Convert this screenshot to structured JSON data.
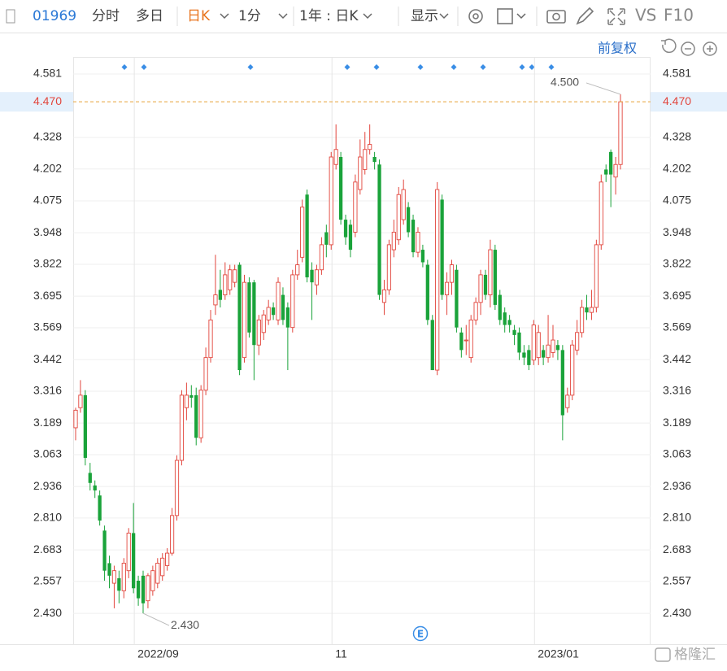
{
  "toolbar": {
    "code": "01969",
    "tabs": [
      "分时",
      "多日",
      "日K"
    ],
    "interval": "1分",
    "range": "1年 : 日K",
    "display": "显示",
    "compare": "VS",
    "f10": "F10",
    "adjustment": "前复权"
  },
  "watermark": "格隆汇",
  "event_badge": "E",
  "chart_data": {
    "type": "candlestick",
    "up_color": "#e2453c",
    "down_color": "#1aa33a",
    "grid": true,
    "ylim": [
      2.307,
      4.649
    ],
    "yticks": [
      {
        "value": 2.43,
        "label": "2.430"
      },
      2.557,
      2.683,
      {
        "value": 2.81,
        "label": "2.810"
      },
      2.936,
      3.063,
      3.189,
      3.316,
      3.442,
      3.569,
      3.695,
      3.822,
      3.948,
      4.075,
      4.202,
      4.328,
      4.581
    ],
    "xticks": [
      {
        "value": 12,
        "label": "2022/09"
      },
      {
        "value": 53,
        "label": "11"
      },
      {
        "value": 95,
        "label": "2023/01"
      }
    ],
    "last_price": {
      "value": 4.47,
      "label": "4.470"
    },
    "extremes": [
      {
        "value": 4.5,
        "label": "4.500"
      },
      {
        "value": 2.43,
        "label": "2.430"
      }
    ],
    "open": [
      3.17,
      3.25,
      3.3,
      2.99,
      2.94,
      2.9,
      2.76,
      2.63,
      2.55,
      2.57,
      2.52,
      2.6,
      2.75,
      2.56,
      2.58,
      2.48,
      2.52,
      2.55,
      2.58,
      2.62,
      2.67,
      2.82,
      3.04,
      3.25,
      3.3,
      3.3,
      3.13,
      3.32,
      3.45,
      3.66,
      3.72,
      3.7,
      3.72,
      3.75,
      3.82,
      3.45,
      3.75,
      3.75,
      3.5,
      3.55,
      3.6,
      3.65,
      3.6,
      3.7,
      3.65,
      3.57,
      3.78,
      3.85,
      4.1,
      3.8,
      3.74,
      3.8,
      3.95,
      3.9,
      4.22,
      4.25,
      4.0,
      3.98,
      3.95,
      4.12,
      4.2,
      4.28,
      4.25,
      4.22,
      3.67,
      3.72,
      3.88,
      3.92,
      4.0,
      4.05,
      4.0,
      3.87,
      3.88,
      3.82,
      3.6,
      3.4,
      4.08,
      3.7,
      3.75,
      3.8,
      3.55,
      3.52,
      3.45,
      3.6,
      3.67,
      3.78,
      3.7,
      3.88,
      3.7,
      3.63,
      3.6,
      3.56,
      3.55,
      3.47,
      3.48,
      3.44,
      3.45,
      3.48,
      3.45,
      3.47,
      3.5,
      3.48,
      3.25,
      3.3,
      3.48,
      3.55,
      3.65,
      3.63,
      3.65,
      3.9,
      4.2,
      4.27,
      4.17,
      4.22
    ],
    "high": [
      3.25,
      3.36,
      3.32,
      3.03,
      2.96,
      2.92,
      2.78,
      2.66,
      2.62,
      2.6,
      2.65,
      2.77,
      2.87,
      2.58,
      2.6,
      2.59,
      2.62,
      2.65,
      2.67,
      2.69,
      2.85,
      3.06,
      3.32,
      3.35,
      3.34,
      3.33,
      3.34,
      3.49,
      3.64,
      3.86,
      3.8,
      3.83,
      3.82,
      3.82,
      3.83,
      3.78,
      3.77,
      3.76,
      3.62,
      3.64,
      3.68,
      3.67,
      3.77,
      3.73,
      3.67,
      3.8,
      3.88,
      4.08,
      4.12,
      3.83,
      3.82,
      3.93,
      3.98,
      4.27,
      4.38,
      4.27,
      4.02,
      4.0,
      4.18,
      4.32,
      4.35,
      4.38,
      4.27,
      4.24,
      3.76,
      3.92,
      4.0,
      4.13,
      4.16,
      4.07,
      4.02,
      3.97,
      3.9,
      3.84,
      3.62,
      4.15,
      4.1,
      3.79,
      3.84,
      3.82,
      3.57,
      3.58,
      3.62,
      3.69,
      3.8,
      3.8,
      3.92,
      3.9,
      3.72,
      3.65,
      3.62,
      3.58,
      3.57,
      3.5,
      3.5,
      3.6,
      3.58,
      3.5,
      3.62,
      3.58,
      3.52,
      3.5,
      3.33,
      3.52,
      3.6,
      3.68,
      3.7,
      3.72,
      3.92,
      4.18,
      4.22,
      4.28,
      4.25,
      4.5
    ],
    "low": [
      3.12,
      3.23,
      3.02,
      2.92,
      2.89,
      2.78,
      2.56,
      2.53,
      2.45,
      2.47,
      2.49,
      2.57,
      2.51,
      2.46,
      2.43,
      2.45,
      2.5,
      2.53,
      2.56,
      2.6,
      2.66,
      2.8,
      3.02,
      3.2,
      3.25,
      3.1,
      3.11,
      3.3,
      3.43,
      3.62,
      3.65,
      3.68,
      3.7,
      3.73,
      3.38,
      3.43,
      3.53,
      3.36,
      3.46,
      3.52,
      3.58,
      3.6,
      3.58,
      3.58,
      3.4,
      3.55,
      3.76,
      3.83,
      3.75,
      3.6,
      3.7,
      3.78,
      3.85,
      3.88,
      4.2,
      3.98,
      3.9,
      3.85,
      3.93,
      4.1,
      4.18,
      4.26,
      4.2,
      3.68,
      3.62,
      3.7,
      3.85,
      3.9,
      3.98,
      3.93,
      3.85,
      3.85,
      3.81,
      3.58,
      3.4,
      3.38,
      3.68,
      3.62,
      3.7,
      3.55,
      3.45,
      3.46,
      3.43,
      3.58,
      3.62,
      3.68,
      3.65,
      3.64,
      3.58,
      3.55,
      3.55,
      3.5,
      3.44,
      3.42,
      3.4,
      3.42,
      3.42,
      3.42,
      3.43,
      3.45,
      3.44,
      3.12,
      3.23,
      3.28,
      3.46,
      3.53,
      3.6,
      3.6,
      3.63,
      3.88,
      4.15,
      4.05,
      4.1,
      4.2
    ],
    "close": [
      3.24,
      3.3,
      3.05,
      2.95,
      2.92,
      2.8,
      2.6,
      2.58,
      2.6,
      2.52,
      2.63,
      2.75,
      2.53,
      2.49,
      2.47,
      2.58,
      2.6,
      2.63,
      2.65,
      2.67,
      2.82,
      3.04,
      3.3,
      3.3,
      3.29,
      3.13,
      3.32,
      3.45,
      3.6,
      3.7,
      3.68,
      3.78,
      3.8,
      3.8,
      3.4,
      3.75,
      3.55,
      3.5,
      3.6,
      3.62,
      3.65,
      3.62,
      3.75,
      3.6,
      3.57,
      3.78,
      3.82,
      4.05,
      3.77,
      3.75,
      3.8,
      3.9,
      3.9,
      4.25,
      4.28,
      4.0,
      3.93,
      3.88,
      4.15,
      4.25,
      4.28,
      4.3,
      4.23,
      3.7,
      3.72,
      3.9,
      3.95,
      4.1,
      4.12,
      3.95,
      3.87,
      3.95,
      3.83,
      3.6,
      3.4,
      4.12,
      3.7,
      3.75,
      3.82,
      3.57,
      3.48,
      3.52,
      3.6,
      3.67,
      3.78,
      3.7,
      3.88,
      3.66,
      3.6,
      3.58,
      3.58,
      3.54,
      3.47,
      3.45,
      3.42,
      3.58,
      3.55,
      3.45,
      3.5,
      3.52,
      3.48,
      3.22,
      3.3,
      3.5,
      3.55,
      3.65,
      3.63,
      3.65,
      3.9,
      4.15,
      4.18,
      4.18,
      4.22,
      4.47
    ]
  }
}
